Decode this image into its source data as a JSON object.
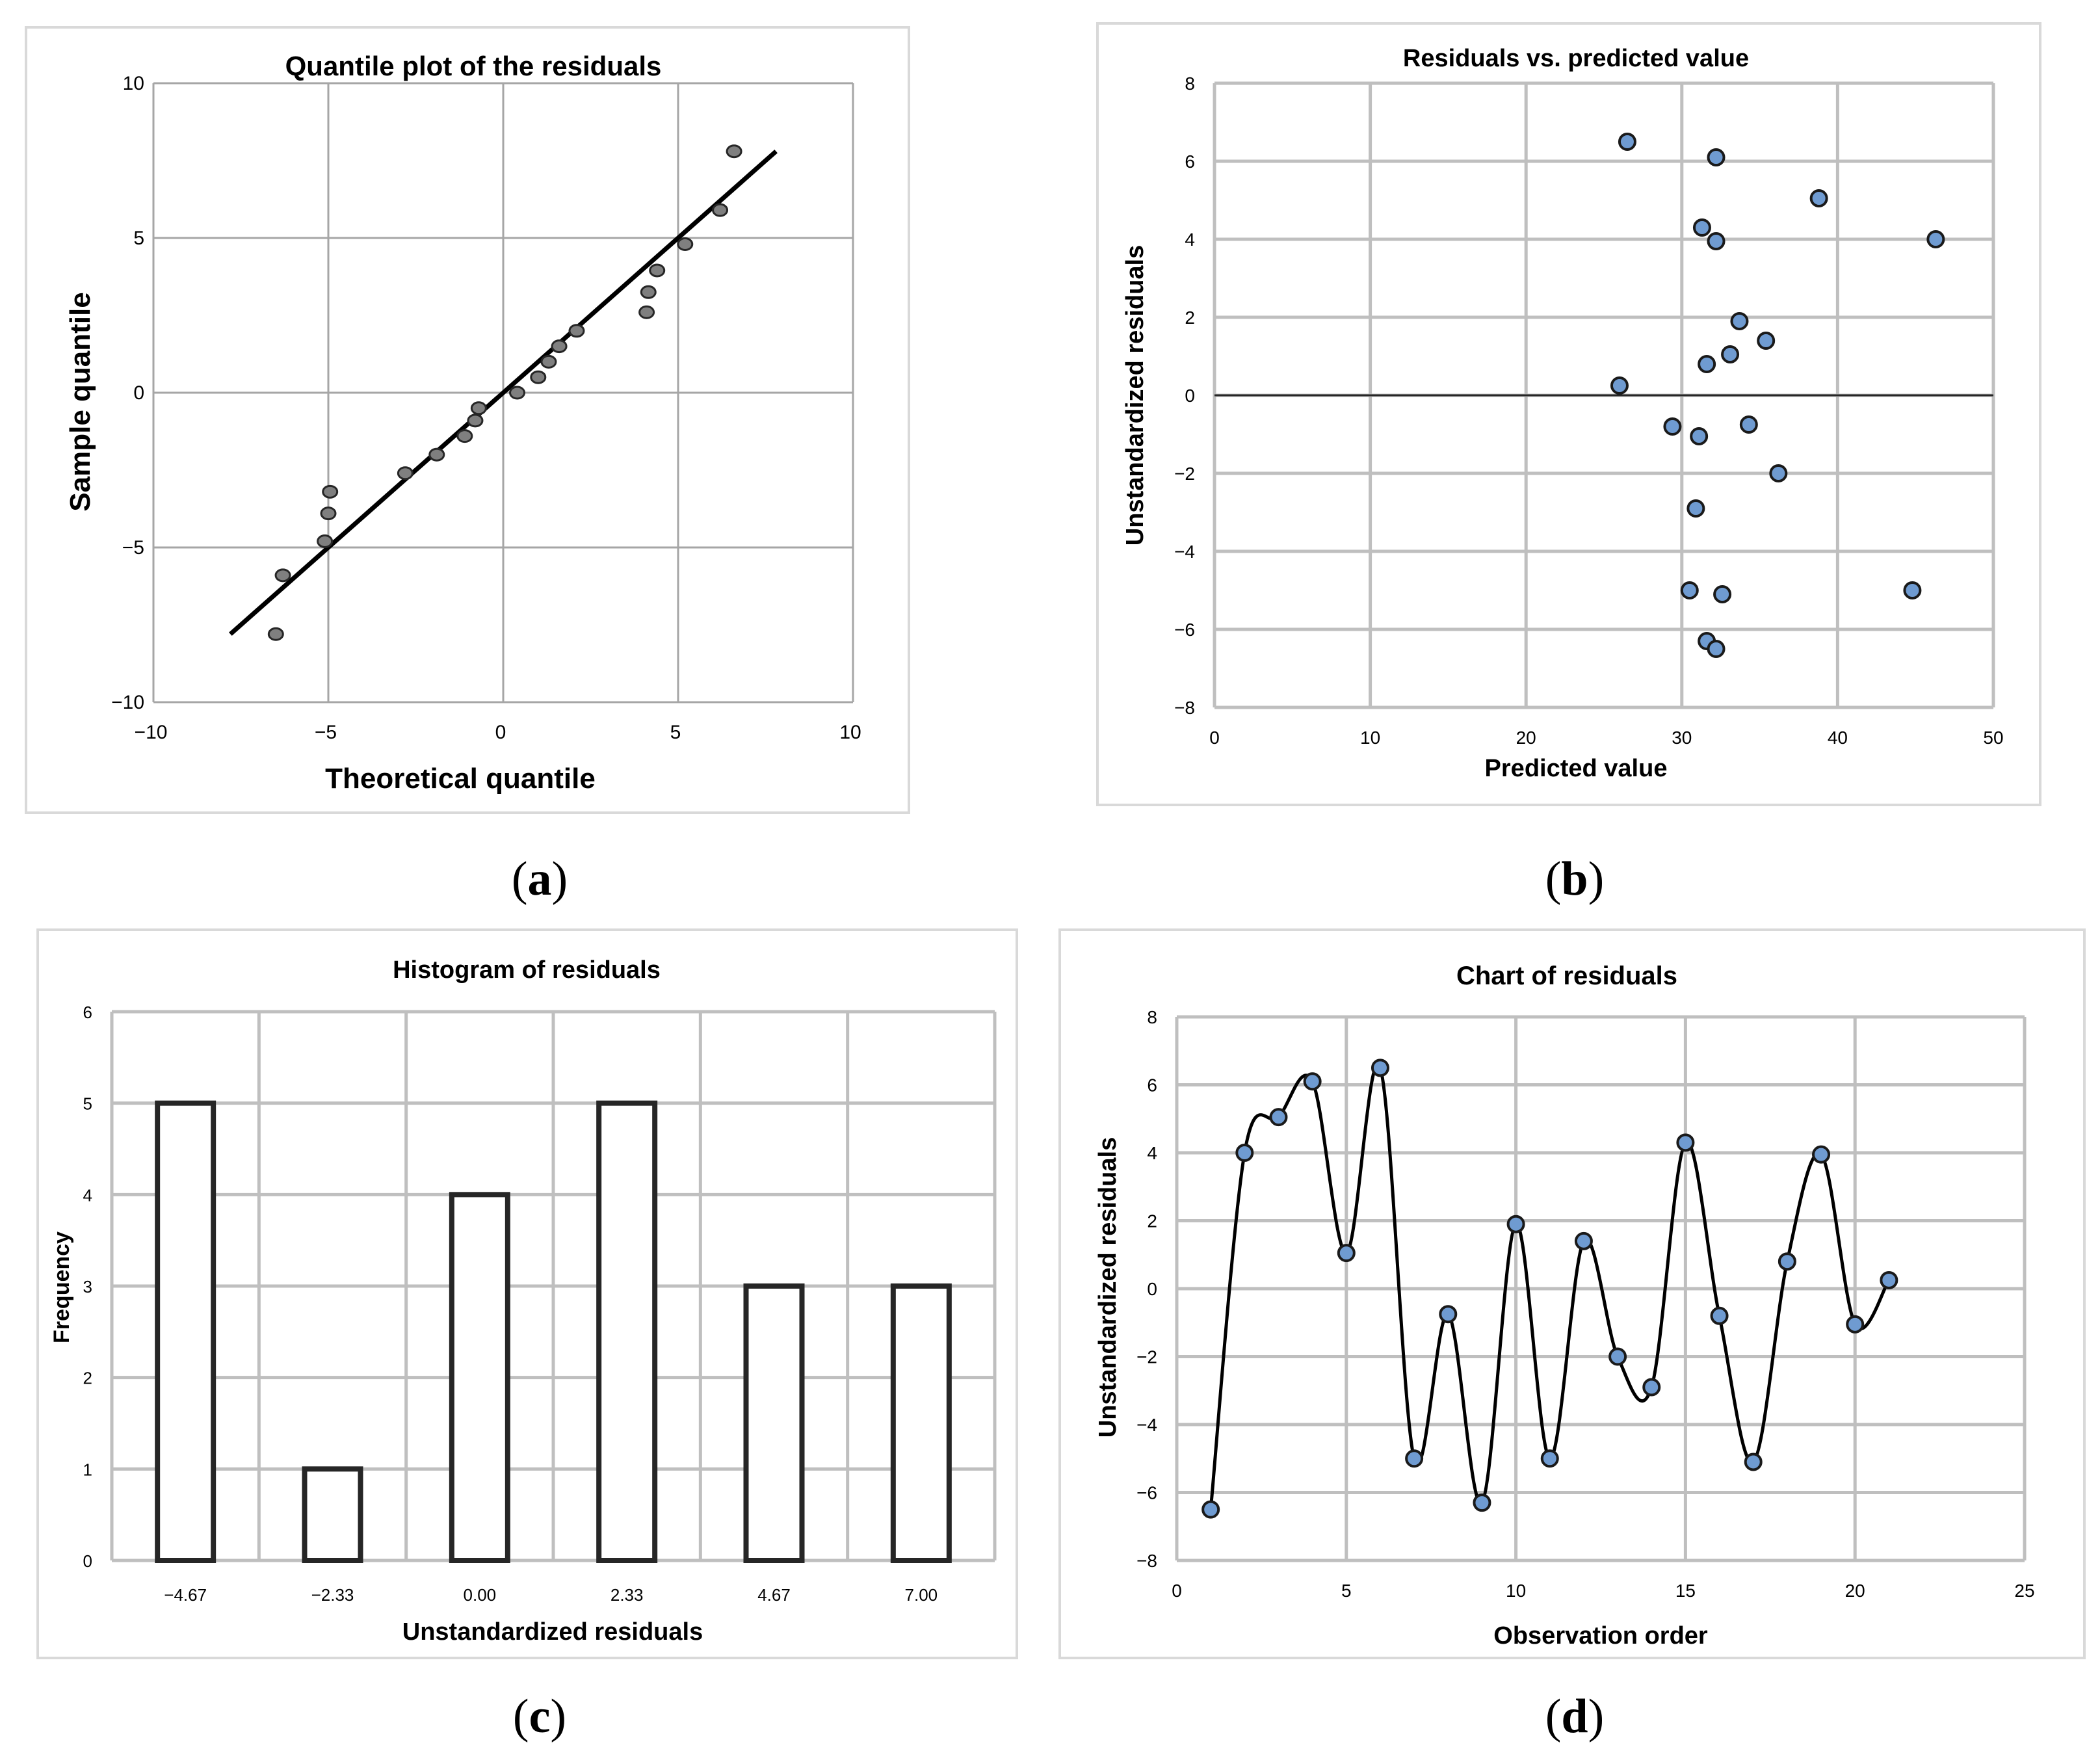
{
  "captions": {
    "a": {
      "open": "(",
      "letter": "a",
      "close": ")"
    },
    "b": {
      "open": "(",
      "letter": "b",
      "close": ")"
    },
    "c": {
      "open": "(",
      "letter": "c",
      "close": ")"
    },
    "d": {
      "open": "(",
      "letter": "d",
      "close": ")"
    }
  },
  "chart_data": [
    {
      "id": "a",
      "type": "scatter",
      "title": "Quantile plot of the residuals",
      "xlabel": "Theoretical quantile",
      "ylabel": "Sample quantile",
      "xlim": [
        -10,
        10
      ],
      "ylim": [
        -10,
        10
      ],
      "xticks": [
        -10,
        -5,
        0,
        5,
        10
      ],
      "yticks": [
        -10,
        -5,
        0,
        5,
        10
      ],
      "xtick_labels": [
        "−10",
        "−5",
        "0",
        "5",
        "10"
      ],
      "ytick_labels": [
        "−10",
        "−5",
        "0",
        "5",
        "10"
      ],
      "grid": true,
      "points": [
        {
          "x": -6.5,
          "y": -7.8
        },
        {
          "x": -6.3,
          "y": -5.9
        },
        {
          "x": -5.1,
          "y": -4.8
        },
        {
          "x": -5.0,
          "y": -3.9
        },
        {
          "x": -4.95,
          "y": -3.2
        },
        {
          "x": -2.8,
          "y": -2.6
        },
        {
          "x": -1.9,
          "y": -2.0
        },
        {
          "x": -1.1,
          "y": -1.4
        },
        {
          "x": -0.8,
          "y": -0.9
        },
        {
          "x": -0.7,
          "y": -0.5
        },
        {
          "x": 0.4,
          "y": 0.0
        },
        {
          "x": 1.0,
          "y": 0.5
        },
        {
          "x": 1.3,
          "y": 1.0
        },
        {
          "x": 1.6,
          "y": 1.5
        },
        {
          "x": 2.1,
          "y": 2.0
        },
        {
          "x": 4.1,
          "y": 2.6
        },
        {
          "x": 4.15,
          "y": 3.25
        },
        {
          "x": 4.4,
          "y": 3.95
        },
        {
          "x": 5.2,
          "y": 4.8
        },
        {
          "x": 6.2,
          "y": 5.9
        },
        {
          "x": 6.6,
          "y": 7.8
        }
      ],
      "fit_line": {
        "x1": -7.8,
        "y1": -7.8,
        "x2": 7.8,
        "y2": 7.8
      }
    },
    {
      "id": "b",
      "type": "scatter",
      "title": "Residuals vs. predicted value",
      "xlabel": "Predicted value",
      "ylabel": "Unstandardized residuals",
      "xlim": [
        0,
        50
      ],
      "ylim": [
        -8,
        8
      ],
      "xticks": [
        0,
        10,
        20,
        30,
        40,
        50
      ],
      "yticks": [
        -8,
        -6,
        -4,
        -2,
        0,
        2,
        4,
        6,
        8
      ],
      "xtick_labels": [
        "0",
        "10",
        "20",
        "30",
        "40",
        "50"
      ],
      "ytick_labels": [
        "−8",
        "−6",
        "−4",
        "−2",
        "0",
        "2",
        "4",
        "6",
        "8"
      ],
      "grid": true,
      "reference_line_y": 0,
      "points": [
        {
          "x": 26.5,
          "y": 6.5
        },
        {
          "x": 32.2,
          "y": 6.1
        },
        {
          "x": 38.8,
          "y": 5.05
        },
        {
          "x": 31.3,
          "y": 4.3
        },
        {
          "x": 32.2,
          "y": 3.95
        },
        {
          "x": 46.3,
          "y": 4.0
        },
        {
          "x": 33.7,
          "y": 1.9
        },
        {
          "x": 35.4,
          "y": 1.4
        },
        {
          "x": 33.1,
          "y": 1.05
        },
        {
          "x": 31.6,
          "y": 0.8
        },
        {
          "x": 26.0,
          "y": 0.25
        },
        {
          "x": 29.4,
          "y": -0.8
        },
        {
          "x": 31.1,
          "y": -1.05
        },
        {
          "x": 34.3,
          "y": -0.75
        },
        {
          "x": 36.2,
          "y": -2.0
        },
        {
          "x": 30.9,
          "y": -2.9
        },
        {
          "x": 30.5,
          "y": -5.0
        },
        {
          "x": 32.6,
          "y": -5.1
        },
        {
          "x": 44.8,
          "y": -5.0
        },
        {
          "x": 31.6,
          "y": -6.3
        },
        {
          "x": 32.2,
          "y": -6.5
        }
      ]
    },
    {
      "id": "c",
      "type": "bar",
      "title": "Histogram of residuals",
      "xlabel": "Unstandardized residuals",
      "ylabel": "Frequency",
      "ylim": [
        0,
        6
      ],
      "yticks": [
        0,
        1,
        2,
        3,
        4,
        5,
        6
      ],
      "ytick_labels": [
        "0",
        "1",
        "2",
        "3",
        "4",
        "5",
        "6"
      ],
      "grid": true,
      "categories": [
        "−4.67",
        "−2.33",
        "0.00",
        "2.33",
        "4.67",
        "7.00"
      ],
      "values": [
        5,
        1,
        4,
        5,
        3,
        3
      ]
    },
    {
      "id": "d",
      "type": "line",
      "title": "Chart of residuals",
      "xlabel": "Observation order",
      "ylabel": "Unstandardized residuals",
      "xlim": [
        0,
        25
      ],
      "ylim": [
        -8,
        8
      ],
      "xticks": [
        0,
        5,
        10,
        15,
        20,
        25
      ],
      "yticks": [
        -8,
        -6,
        -4,
        -2,
        0,
        2,
        4,
        6,
        8
      ],
      "xtick_labels": [
        "0",
        "5",
        "10",
        "15",
        "20",
        "25"
      ],
      "ytick_labels": [
        "−8",
        "−6",
        "−4",
        "−2",
        "0",
        "2",
        "4",
        "6",
        "8"
      ],
      "grid": true,
      "x": [
        1,
        2,
        3,
        4,
        5,
        6,
        7,
        8,
        9,
        10,
        11,
        12,
        13,
        14,
        15,
        16,
        17,
        18,
        19,
        20,
        21
      ],
      "values": [
        -6.5,
        4.0,
        5.05,
        6.1,
        1.05,
        6.5,
        -5.0,
        -0.75,
        -6.3,
        1.9,
        -5.0,
        1.4,
        -2.0,
        -2.9,
        4.3,
        -0.8,
        -5.1,
        0.8,
        3.95,
        -1.05,
        0.25
      ]
    }
  ]
}
